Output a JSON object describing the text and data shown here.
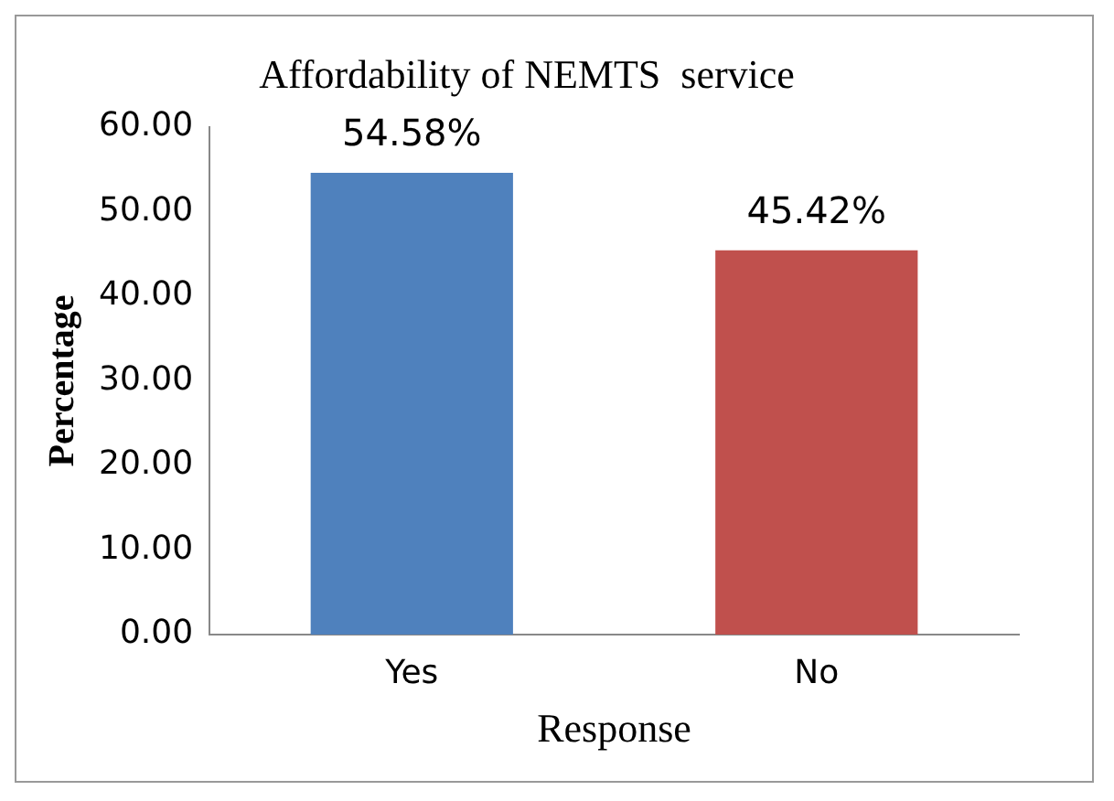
{
  "chart_data": {
    "type": "bar",
    "title": "Affordability of NEMTS  service",
    "xlabel": "Response",
    "ylabel": "Percentage",
    "categories": [
      "Yes",
      "No"
    ],
    "values": [
      54.58,
      45.42
    ],
    "colors": [
      "#4f81bd",
      "#c0504d"
    ],
    "value_labels": [
      "54.58%",
      "45.42%"
    ],
    "ylim": [
      0,
      60
    ],
    "yticks": [
      {
        "value": 0,
        "label": "0.00"
      },
      {
        "value": 10,
        "label": "10.00"
      },
      {
        "value": 20,
        "label": "20.00"
      },
      {
        "value": 30,
        "label": "30.00"
      },
      {
        "value": 40,
        "label": "40.00"
      },
      {
        "value": 50,
        "label": "50.00"
      },
      {
        "value": 60,
        "label": "60.00"
      }
    ],
    "grid": false,
    "legend": false
  }
}
